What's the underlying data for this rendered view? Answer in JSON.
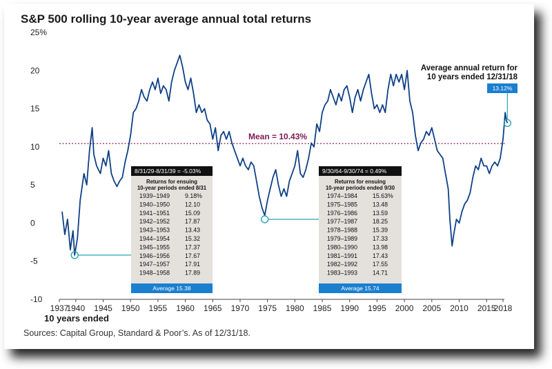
{
  "title": "S&P 500 rolling 10-year average annual total returns",
  "source": "Sources: Capital Group, Standard & Poor’s. As of 12/31/18.",
  "x_footer": "10 years ended",
  "chart_data": {
    "type": "line",
    "ylim": [
      -10,
      25
    ],
    "y_ticks": [
      "25%",
      "20",
      "15",
      "10",
      "5",
      "0",
      "-5",
      "-10"
    ],
    "x_ticks": [
      "1937",
      "1940",
      "1945",
      "1950",
      "1955",
      "1960",
      "1965",
      "1970",
      "1975",
      "1980",
      "1985",
      "1990",
      "1995",
      "2000",
      "2005",
      "2010",
      "2015",
      "2018"
    ],
    "mean_label": "Mean = 10.43%",
    "mean_value": 10.43,
    "end_annotation_line1": "Average annual return for",
    "end_annotation_line2": "10 years ended 12/31/18",
    "end_value_label": "13.12%",
    "series": [
      {
        "color": "#0d3f86",
        "points": [
          [
            1937.5,
            1.5
          ],
          [
            1938.0,
            -1.5
          ],
          [
            1938.5,
            0.5
          ],
          [
            1939.0,
            -3.5
          ],
          [
            1939.5,
            -1.0
          ],
          [
            1939.8,
            -4.2
          ],
          [
            1940.3,
            -2.0
          ],
          [
            1940.8,
            3.0
          ],
          [
            1941.5,
            6.5
          ],
          [
            1942.0,
            5.0
          ],
          [
            1942.5,
            9.5
          ],
          [
            1943.0,
            12.5
          ],
          [
            1943.3,
            9.0
          ],
          [
            1943.8,
            7.5
          ],
          [
            1944.5,
            6.5
          ],
          [
            1945.0,
            8.5
          ],
          [
            1945.5,
            7.5
          ],
          [
            1946.0,
            9.5
          ],
          [
            1946.5,
            6.5
          ],
          [
            1947.0,
            5.5
          ],
          [
            1947.5,
            4.8
          ],
          [
            1948.0,
            5.5
          ],
          [
            1948.5,
            6.0
          ],
          [
            1949.0,
            8.0
          ],
          [
            1949.5,
            9.5
          ],
          [
            1950.0,
            11.5
          ],
          [
            1950.5,
            14.5
          ],
          [
            1951.0,
            15.0
          ],
          [
            1951.5,
            16.0
          ],
          [
            1952.0,
            17.5
          ],
          [
            1952.5,
            16.5
          ],
          [
            1953.0,
            16.0
          ],
          [
            1953.5,
            17.5
          ],
          [
            1954.0,
            18.5
          ],
          [
            1954.5,
            17.5
          ],
          [
            1955.0,
            19.0
          ],
          [
            1955.5,
            17.0
          ],
          [
            1956.0,
            18.0
          ],
          [
            1956.5,
            17.5
          ],
          [
            1957.0,
            16.0
          ],
          [
            1957.5,
            18.5
          ],
          [
            1958.0,
            20.0
          ],
          [
            1958.5,
            21.0
          ],
          [
            1959.0,
            22.0
          ],
          [
            1959.5,
            20.5
          ],
          [
            1960.0,
            18.5
          ],
          [
            1960.5,
            17.5
          ],
          [
            1961.0,
            19.0
          ],
          [
            1961.5,
            17.0
          ],
          [
            1962.0,
            14.5
          ],
          [
            1962.5,
            15.5
          ],
          [
            1963.0,
            14.5
          ],
          [
            1963.5,
            15.0
          ],
          [
            1964.0,
            13.5
          ],
          [
            1964.5,
            13.0
          ],
          [
            1965.0,
            11.0
          ],
          [
            1965.5,
            12.5
          ],
          [
            1966.0,
            9.5
          ],
          [
            1966.5,
            11.5
          ],
          [
            1967.0,
            12.0
          ],
          [
            1967.5,
            11.0
          ],
          [
            1968.0,
            12.0
          ],
          [
            1968.5,
            10.5
          ],
          [
            1969.0,
            9.5
          ],
          [
            1969.5,
            8.5
          ],
          [
            1970.0,
            7.5
          ],
          [
            1970.5,
            8.5
          ],
          [
            1971.0,
            7.5
          ],
          [
            1971.5,
            7.0
          ],
          [
            1972.0,
            8.0
          ],
          [
            1972.5,
            7.5
          ],
          [
            1973.0,
            5.5
          ],
          [
            1973.5,
            3.5
          ],
          [
            1974.0,
            2.0
          ],
          [
            1974.5,
            1.0
          ],
          [
            1975.0,
            3.0
          ],
          [
            1975.5,
            4.5
          ],
          [
            1976.0,
            6.0
          ],
          [
            1976.5,
            7.0
          ],
          [
            1977.0,
            5.0
          ],
          [
            1977.5,
            3.5
          ],
          [
            1978.0,
            4.5
          ],
          [
            1978.5,
            3.5
          ],
          [
            1979.0,
            5.5
          ],
          [
            1979.5,
            6.5
          ],
          [
            1980.0,
            7.5
          ],
          [
            1980.5,
            9.5
          ],
          [
            1981.0,
            6.5
          ],
          [
            1981.5,
            6.0
          ],
          [
            1982.0,
            7.0
          ],
          [
            1982.5,
            8.5
          ],
          [
            1983.0,
            10.5
          ],
          [
            1983.5,
            10.0
          ],
          [
            1984.0,
            13.0
          ],
          [
            1984.5,
            12.0
          ],
          [
            1985.0,
            14.5
          ],
          [
            1985.5,
            15.5
          ],
          [
            1986.0,
            16.0
          ],
          [
            1986.5,
            17.5
          ],
          [
            1987.0,
            16.5
          ],
          [
            1987.5,
            15.5
          ],
          [
            1988.0,
            17.0
          ],
          [
            1988.5,
            16.0
          ],
          [
            1989.0,
            17.5
          ],
          [
            1989.5,
            18.0
          ],
          [
            1990.0,
            16.5
          ],
          [
            1990.5,
            14.5
          ],
          [
            1991.0,
            16.5
          ],
          [
            1991.5,
            17.5
          ],
          [
            1992.0,
            16.0
          ],
          [
            1992.5,
            17.5
          ],
          [
            1993.0,
            18.5
          ],
          [
            1993.5,
            19.5
          ],
          [
            1994.0,
            17.0
          ],
          [
            1994.5,
            15.0
          ],
          [
            1995.0,
            15.5
          ],
          [
            1995.5,
            14.5
          ],
          [
            1996.0,
            15.5
          ],
          [
            1996.5,
            14.5
          ],
          [
            1997.0,
            17.5
          ],
          [
            1997.5,
            19.5
          ],
          [
            1998.0,
            18.0
          ],
          [
            1998.5,
            19.5
          ],
          [
            1999.0,
            18.5
          ],
          [
            1999.5,
            19.5
          ],
          [
            2000.0,
            17.5
          ],
          [
            2000.5,
            20.0
          ],
          [
            2001.0,
            16.0
          ],
          [
            2001.5,
            14.5
          ],
          [
            2002.0,
            11.5
          ],
          [
            2002.5,
            9.5
          ],
          [
            2003.0,
            10.5
          ],
          [
            2003.5,
            11.0
          ],
          [
            2004.0,
            12.0
          ],
          [
            2004.5,
            11.5
          ],
          [
            2005.0,
            12.5
          ],
          [
            2005.5,
            11.0
          ],
          [
            2006.0,
            9.5
          ],
          [
            2006.5,
            9.0
          ],
          [
            2007.0,
            8.5
          ],
          [
            2007.5,
            6.5
          ],
          [
            2008.0,
            4.5
          ],
          [
            2008.3,
            0.5
          ],
          [
            2008.7,
            -3.0
          ],
          [
            2009.0,
            -1.5
          ],
          [
            2009.5,
            0.5
          ],
          [
            2010.0,
            0.0
          ],
          [
            2010.5,
            1.5
          ],
          [
            2011.0,
            2.5
          ],
          [
            2011.5,
            3.0
          ],
          [
            2012.0,
            4.0
          ],
          [
            2012.5,
            6.0
          ],
          [
            2013.0,
            7.5
          ],
          [
            2013.5,
            7.0
          ],
          [
            2014.0,
            8.5
          ],
          [
            2014.5,
            7.5
          ],
          [
            2015.0,
            7.5
          ],
          [
            2015.5,
            6.5
          ],
          [
            2016.0,
            7.5
          ],
          [
            2016.5,
            8.0
          ],
          [
            2017.0,
            7.5
          ],
          [
            2017.5,
            8.5
          ],
          [
            2018.0,
            11.0
          ],
          [
            2018.4,
            14.5
          ],
          [
            2018.6,
            13.5
          ],
          [
            2018.8,
            13.12
          ]
        ]
      }
    ]
  },
  "table_left": {
    "header": "8/31/29-8/31/39 = -5.03%",
    "sub1": "Returns for ensuing",
    "sub2": "10-year periods ended 8/31",
    "rows": [
      [
        "1939–1949",
        "9.18%"
      ],
      [
        "1940–1950",
        "12.10"
      ],
      [
        "1941–1951",
        "15.09"
      ],
      [
        "1942–1952",
        "17.87"
      ],
      [
        "1943–1953",
        "13.43"
      ],
      [
        "1944–1954",
        "15.32"
      ],
      [
        "1945–1955",
        "17.37"
      ],
      [
        "1946–1956",
        "17.67"
      ],
      [
        "1947–1957",
        "17.91"
      ],
      [
        "1948–1958",
        "17.89"
      ]
    ],
    "average": "Average  15.38",
    "anchor_year": 1939.8,
    "anchor_value": -4.2
  },
  "table_right": {
    "header": "9/30/64-9/30/74 = 0.49%",
    "sub1": "Returns for ensuing",
    "sub2": "10-year periods ended 9/30",
    "rows": [
      [
        "1974–1984",
        "15.63%"
      ],
      [
        "1975–1985",
        "13.48"
      ],
      [
        "1976–1986",
        "13.59"
      ],
      [
        "1977–1987",
        "18.25"
      ],
      [
        "1978–1988",
        "15.39"
      ],
      [
        "1979–1989",
        "17.33"
      ],
      [
        "1980–1990",
        "13.98"
      ],
      [
        "1981–1991",
        "17.43"
      ],
      [
        "1982–1992",
        "17.55"
      ],
      [
        "1983–1993",
        "14.71"
      ]
    ],
    "average": "Average  15.74",
    "anchor_year": 1974.5,
    "anchor_value": 0.49
  }
}
